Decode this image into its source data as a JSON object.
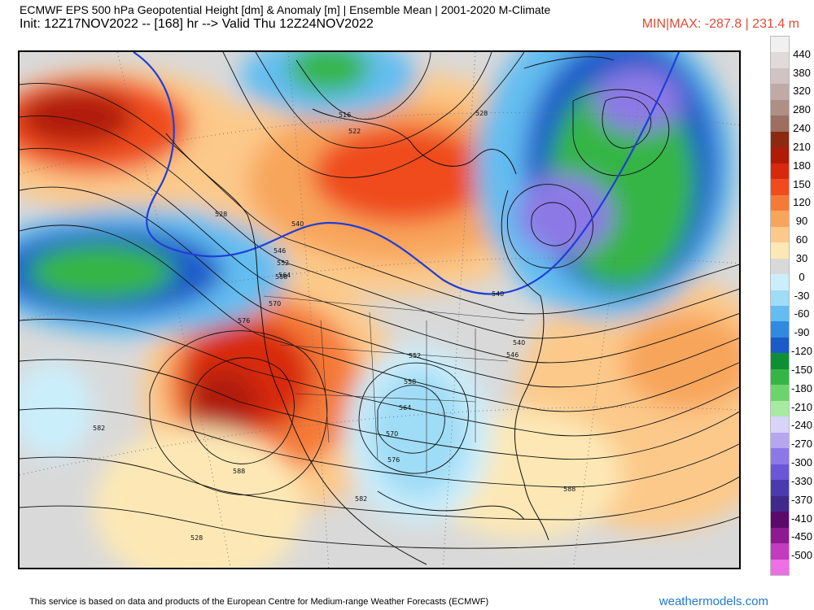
{
  "header": {
    "title": "ECMWF EPS 500 hPa Geopotential Height [dm] & Anomaly [m] | Ensemble Mean | 2001-2020 M-Climate",
    "init": "Init: 12Z17NOV2022 -- [168] hr --> Valid Thu 12Z24NOV2022",
    "minmax": "MIN|MAX: -287.8 | 231.4 m"
  },
  "colorbar": {
    "ticks": [
      "440",
      "380",
      "320",
      "280",
      "240",
      "210",
      "180",
      "150",
      "120",
      "90",
      "60",
      "30",
      "0",
      "-30",
      "-60",
      "-90",
      "-120",
      "-150",
      "-180",
      "-210",
      "-240",
      "-270",
      "-300",
      "-330",
      "-370",
      "-410",
      "-450",
      "-500"
    ],
    "colors": [
      "#f0f0f0",
      "#e0dada",
      "#cfc3c3",
      "#bfaaa6",
      "#ae8f85",
      "#9c6f60",
      "#8b2a10",
      "#b01a07",
      "#d8290d",
      "#ef4b1f",
      "#f57a38",
      "#f8a55c",
      "#fcc98a",
      "#fde8b5",
      "#d9d9d9",
      "#cbeefb",
      "#9fdcf6",
      "#63bdf0",
      "#2f8ae0",
      "#1a5bc9",
      "#0e8f35",
      "#35b545",
      "#6cd46c",
      "#a8eaa2",
      "#d8d3f7",
      "#b6a6f0",
      "#8d79e6",
      "#6a56d6",
      "#4b3aae",
      "#3f2a8c",
      "#5b0a6b",
      "#8e1a91",
      "#c43bbf",
      "#ec6fe3"
    ]
  },
  "map": {
    "contour_labels": [
      "516",
      "522",
      "528",
      "528",
      "540",
      "540",
      "546",
      "552",
      "558",
      "564",
      "570",
      "576",
      "582",
      "588",
      "528",
      "552",
      "558",
      "564",
      "570",
      "576",
      "582",
      "588",
      "546",
      "540"
    ],
    "icon": "ensemble-height-anomaly-map"
  },
  "footer": {
    "note": "This service is based on data and products of the European Centre for Medium-range Weather Forecasts (ECMWF)",
    "brand": "weathermodels.com"
  }
}
